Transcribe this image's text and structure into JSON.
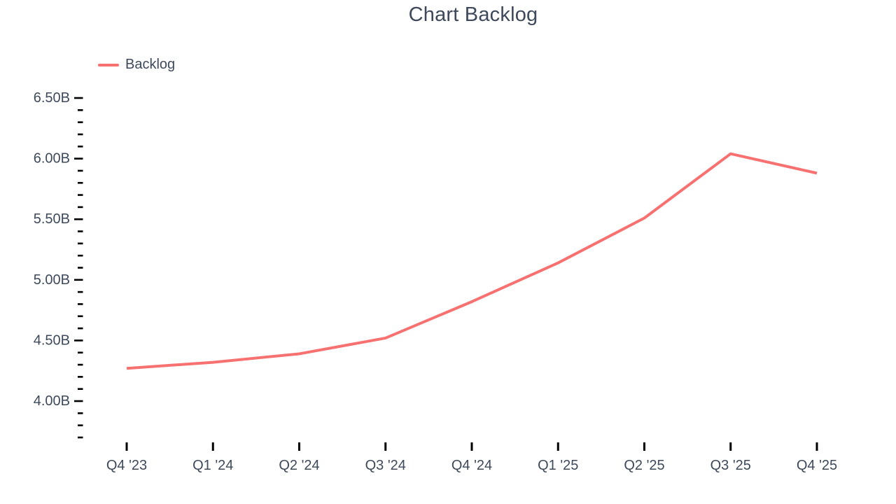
{
  "colors": {
    "series_line": "#F87171",
    "text": "#3E4A5B",
    "tick": "#000000",
    "background": "#FFFFFF"
  },
  "legend": {
    "items": [
      {
        "label": "Backlog",
        "color": "#F87171"
      }
    ]
  },
  "chart_data": {
    "type": "line",
    "title": "Chart Backlog",
    "xlabel": "",
    "ylabel": "",
    "unit": "B",
    "grid": false,
    "legend_position": "top-left",
    "categories": [
      "Q4 '23",
      "Q1 '24",
      "Q2 '24",
      "Q3 '24",
      "Q4 '24",
      "Q1 '25",
      "Q2 '25",
      "Q3 '25",
      "Q4 '25"
    ],
    "series": [
      {
        "name": "Backlog",
        "color": "#F87171",
        "values": [
          4.27,
          4.32,
          4.39,
          4.52,
          4.82,
          5.14,
          5.51,
          6.04,
          5.88
        ]
      }
    ],
    "y_axis": {
      "tick_labels": [
        "6.50B",
        "6.00B",
        "5.50B",
        "5.00B",
        "4.50B",
        "4.00B"
      ],
      "tick_values": [
        6.5,
        6.0,
        5.5,
        5.0,
        4.5,
        4.0
      ],
      "minor_tick_step": 0.1,
      "range": [
        3.7,
        6.5
      ]
    }
  }
}
